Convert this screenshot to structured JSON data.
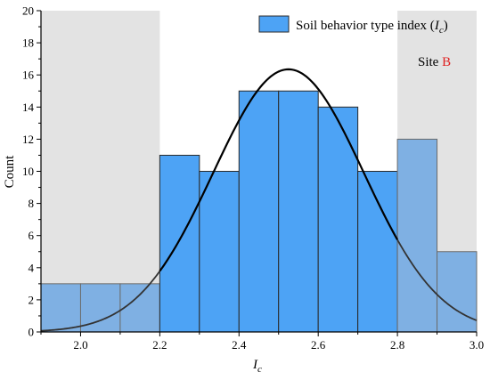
{
  "chart_data": {
    "type": "bar",
    "subtype": "histogram",
    "xlabel": "I",
    "xlabel_sub": "c",
    "ylabel": "Count",
    "xlim": [
      1.9,
      3.0
    ],
    "ylim": [
      0,
      20
    ],
    "x_ticks": [
      2.0,
      2.2,
      2.4,
      2.6,
      2.8,
      3.0
    ],
    "x_tick_labels": [
      "2.0",
      "2.2",
      "2.4",
      "2.6",
      "2.8",
      "3.0"
    ],
    "y_ticks": [
      0,
      2,
      4,
      6,
      8,
      10,
      12,
      14,
      16,
      18,
      20
    ],
    "y_tick_labels": [
      "0",
      "2",
      "4",
      "6",
      "8",
      "10",
      "12",
      "14",
      "16",
      "18",
      "20"
    ],
    "bins": [
      {
        "x0": 1.9,
        "x1": 2.0,
        "count": 3
      },
      {
        "x0": 2.0,
        "x1": 2.1,
        "count": 3
      },
      {
        "x0": 2.1,
        "x1": 2.2,
        "count": 3
      },
      {
        "x0": 2.2,
        "x1": 2.3,
        "count": 11
      },
      {
        "x0": 2.3,
        "x1": 2.4,
        "count": 10
      },
      {
        "x0": 2.4,
        "x1": 2.5,
        "count": 15
      },
      {
        "x0": 2.5,
        "x1": 2.6,
        "count": 15
      },
      {
        "x0": 2.6,
        "x1": 2.7,
        "count": 14
      },
      {
        "x0": 2.7,
        "x1": 2.8,
        "count": 10
      },
      {
        "x0": 2.8,
        "x1": 2.9,
        "count": 12
      },
      {
        "x0": 2.9,
        "x1": 3.0,
        "count": 5
      }
    ],
    "shaded_regions": [
      {
        "x0": 1.9,
        "x1": 2.2
      },
      {
        "x0": 2.8,
        "x1": 3.0
      }
    ],
    "normal_fit": {
      "mean": 2.525,
      "std": 0.19,
      "peak": 16.35
    },
    "legend": {
      "text_prefix": "Soil behavior type index (",
      "text_var": "I",
      "text_sub": "c",
      "text_suffix": ")",
      "placement": "top-right"
    },
    "annotation": {
      "text": "Site ",
      "highlight": "B"
    },
    "colors": {
      "bar": "#4da3f5",
      "bar_faded": "#7fb0e3",
      "bar_edge": "#2a2a2a",
      "shade": "#e3e3e3",
      "curve": "#000000",
      "curve_faded": "#333333",
      "highlight": "#e02020"
    },
    "grid": false
  }
}
